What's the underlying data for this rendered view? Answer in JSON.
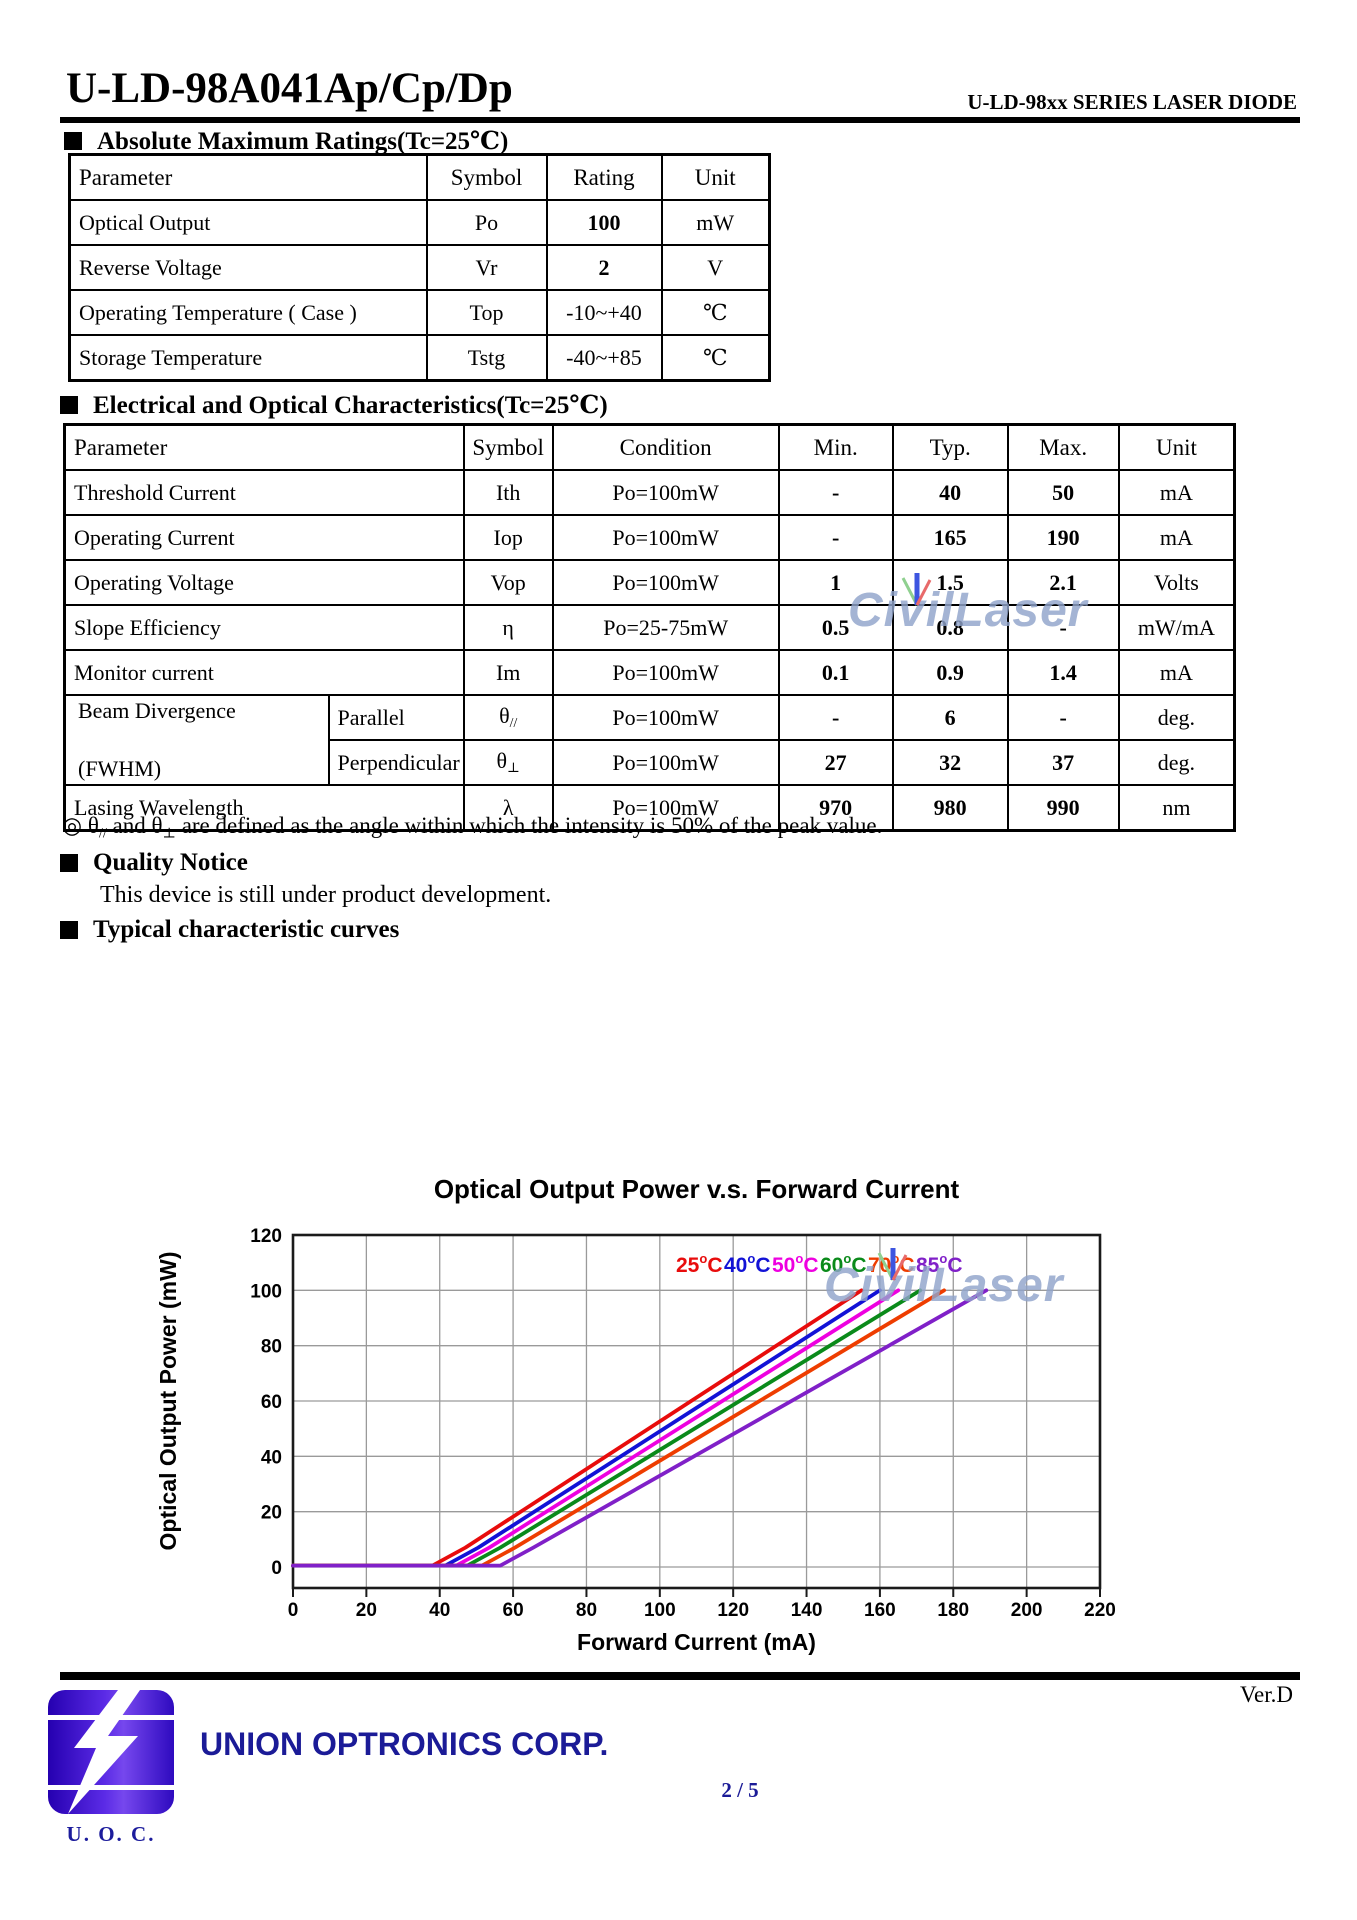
{
  "doc": {
    "title": "U-LD-98A041Ap/Cp/Dp",
    "series": "U-LD-98xx SERIES LASER DIODE",
    "version": "Ver.D",
    "page_number": "2 / 5"
  },
  "watermark": {
    "text": "CivilLaser"
  },
  "sections": {
    "abs_max_heading": "Absolute Maximum Ratings(Tc=25℃)",
    "eo_heading": "Electrical and Optical Characteristics(Tc=25℃)",
    "quality_heading": "Quality Notice",
    "quality_body": "This device is still under product development.",
    "curves_heading": "Typical characteristic curves"
  },
  "abs_max_table": {
    "headers": [
      "Parameter",
      "Symbol",
      "Rating",
      "Unit"
    ],
    "rows": [
      [
        {
          "t": "Optical Output"
        },
        {
          "t": "Po"
        },
        {
          "t": "100",
          "b": 1
        },
        {
          "t": "mW"
        }
      ],
      [
        {
          "t": "Reverse Voltage"
        },
        {
          "t": "Vr"
        },
        {
          "t": "2",
          "b": 1
        },
        {
          "t": "V"
        }
      ],
      [
        {
          "t": "Operating Temperature ( Case )"
        },
        {
          "t": "Top"
        },
        {
          "t": "-10~+40"
        },
        {
          "t": "℃"
        }
      ],
      [
        {
          "t": "Storage Temperature"
        },
        {
          "t": "Tstg"
        },
        {
          "t": "-40~+85"
        },
        {
          "t": "℃"
        }
      ]
    ]
  },
  "eo_table": {
    "headers": [
      "Parameter",
      "Symbol",
      "Condition",
      "Min.",
      "Typ.",
      "Max.",
      "Unit"
    ],
    "rows": [
      [
        {
          "t": "Threshold Current",
          "colspan": 2
        },
        {
          "t": "Ith"
        },
        {
          "t": "Po=100mW"
        },
        {
          "t": "-",
          "b": 1
        },
        {
          "t": "40",
          "b": 1
        },
        {
          "t": "50",
          "b": 1
        },
        {
          "t": "mA"
        }
      ],
      [
        {
          "t": "Operating Current",
          "colspan": 2
        },
        {
          "t": "Iop"
        },
        {
          "t": "Po=100mW"
        },
        {
          "t": "-",
          "b": 1
        },
        {
          "t": "165",
          "b": 1
        },
        {
          "t": "190",
          "b": 1
        },
        {
          "t": "mA"
        }
      ],
      [
        {
          "t": "Operating Voltage",
          "colspan": 2
        },
        {
          "t": "Vop"
        },
        {
          "t": "Po=100mW"
        },
        {
          "t": "1",
          "b": 1
        },
        {
          "t": "1.5",
          "b": 1
        },
        {
          "t": "2.1",
          "b": 1
        },
        {
          "t": "Volts"
        }
      ],
      [
        {
          "t": "Slope Efficiency",
          "colspan": 2
        },
        {
          "t": "η"
        },
        {
          "t": "Po=25-75mW"
        },
        {
          "t": "0.5",
          "b": 1
        },
        {
          "t": "0.8",
          "b": 1
        },
        {
          "t": "-",
          "b": 1
        },
        {
          "t": "mW/mA"
        }
      ],
      [
        {
          "t": "Monitor current",
          "colspan": 2
        },
        {
          "t": "Im"
        },
        {
          "t": "Po=100mW"
        },
        {
          "t": "0.1",
          "b": 1
        },
        {
          "t": "0.9",
          "b": 1
        },
        {
          "t": "1.4",
          "b": 1
        },
        {
          "t": "mA"
        }
      ],
      [
        {
          "t": "Beam Divergence",
          "t2": "(FWHM)",
          "rowspan": 2
        },
        {
          "t": "Parallel",
          "cls": "subparam"
        },
        {
          "t": "θ",
          "sub": "//"
        },
        {
          "t": "Po=100mW"
        },
        {
          "t": "-",
          "b": 1
        },
        {
          "t": "6",
          "b": 1
        },
        {
          "t": "-",
          "b": 1
        },
        {
          "t": "deg."
        }
      ],
      [
        {
          "t": "Perpendicular",
          "cls": "subparam"
        },
        {
          "t": "θ",
          "sub": "⊥"
        },
        {
          "t": "Po=100mW"
        },
        {
          "t": "27",
          "b": 1
        },
        {
          "t": "32",
          "b": 1
        },
        {
          "t": "37",
          "b": 1
        },
        {
          "t": "deg."
        }
      ],
      [
        {
          "t": "Lasing Wavelength",
          "colspan": 2
        },
        {
          "t": "λ"
        },
        {
          "t": "Po=100mW"
        },
        {
          "t": "970",
          "b": 1
        },
        {
          "t": "980",
          "b": 1
        },
        {
          "t": "990",
          "b": 1
        },
        {
          "t": "nm"
        }
      ]
    ]
  },
  "note_parts": [
    {
      "t": "◎  "
    },
    {
      "t": "θ"
    },
    {
      "sub": "//"
    },
    {
      "t": " and  "
    },
    {
      "t": "θ"
    },
    {
      "sub": "⊥"
    },
    {
      "t": "  are defined as the angle within which the intensity is 50% of the peak value."
    }
  ],
  "chart_data": {
    "type": "line",
    "title": "Optical Output Power v.s. Forward Current",
    "xlabel": "Forward Current (mA)",
    "ylabel": "Optical Output Power (mW)",
    "xlim": [
      0,
      220
    ],
    "ylim": [
      0,
      120
    ],
    "xticks": [
      0,
      20,
      40,
      60,
      80,
      100,
      120,
      140,
      160,
      180,
      200,
      220
    ],
    "yticks": [
      0,
      20,
      40,
      60,
      80,
      100,
      120
    ],
    "grid": true,
    "legend_position": "top-right-inside",
    "series": [
      {
        "label": "25",
        "deg": "o",
        "unit": "C",
        "color": "#e80c0c",
        "points": [
          [
            0,
            0.5
          ],
          [
            38,
            0.5
          ],
          [
            47,
            7
          ],
          [
            155,
            100
          ]
        ]
      },
      {
        "label": "40",
        "deg": "o",
        "unit": "C",
        "color": "#1212d6",
        "points": [
          [
            0,
            0.5
          ],
          [
            41.5,
            0.5
          ],
          [
            50.5,
            7
          ],
          [
            160,
            100
          ]
        ]
      },
      {
        "label": "50",
        "deg": "o",
        "unit": "C",
        "color": "#ee00e0",
        "points": [
          [
            0,
            0.5
          ],
          [
            44.5,
            0.5
          ],
          [
            53.5,
            7
          ],
          [
            165,
            100
          ]
        ]
      },
      {
        "label": "60",
        "deg": "o",
        "unit": "C",
        "color": "#0a8a1a",
        "points": [
          [
            0,
            0.5
          ],
          [
            47.5,
            0.5
          ],
          [
            56.5,
            7
          ],
          [
            171,
            100
          ]
        ]
      },
      {
        "label": "70",
        "deg": "o",
        "unit": "C",
        "color": "#ee3d00",
        "points": [
          [
            0,
            0.5
          ],
          [
            51.5,
            0.5
          ],
          [
            60.5,
            7
          ],
          [
            177.5,
            100
          ]
        ]
      },
      {
        "label": "85",
        "deg": "o",
        "unit": "C",
        "color": "#8020c8",
        "points": [
          [
            0,
            0.5
          ],
          [
            56.5,
            0.5
          ],
          [
            65.5,
            7
          ],
          [
            189,
            100
          ]
        ]
      }
    ]
  },
  "footer": {
    "company": "UNION OPTRONICS CORP.",
    "logo_caption": "U. O. C."
  }
}
